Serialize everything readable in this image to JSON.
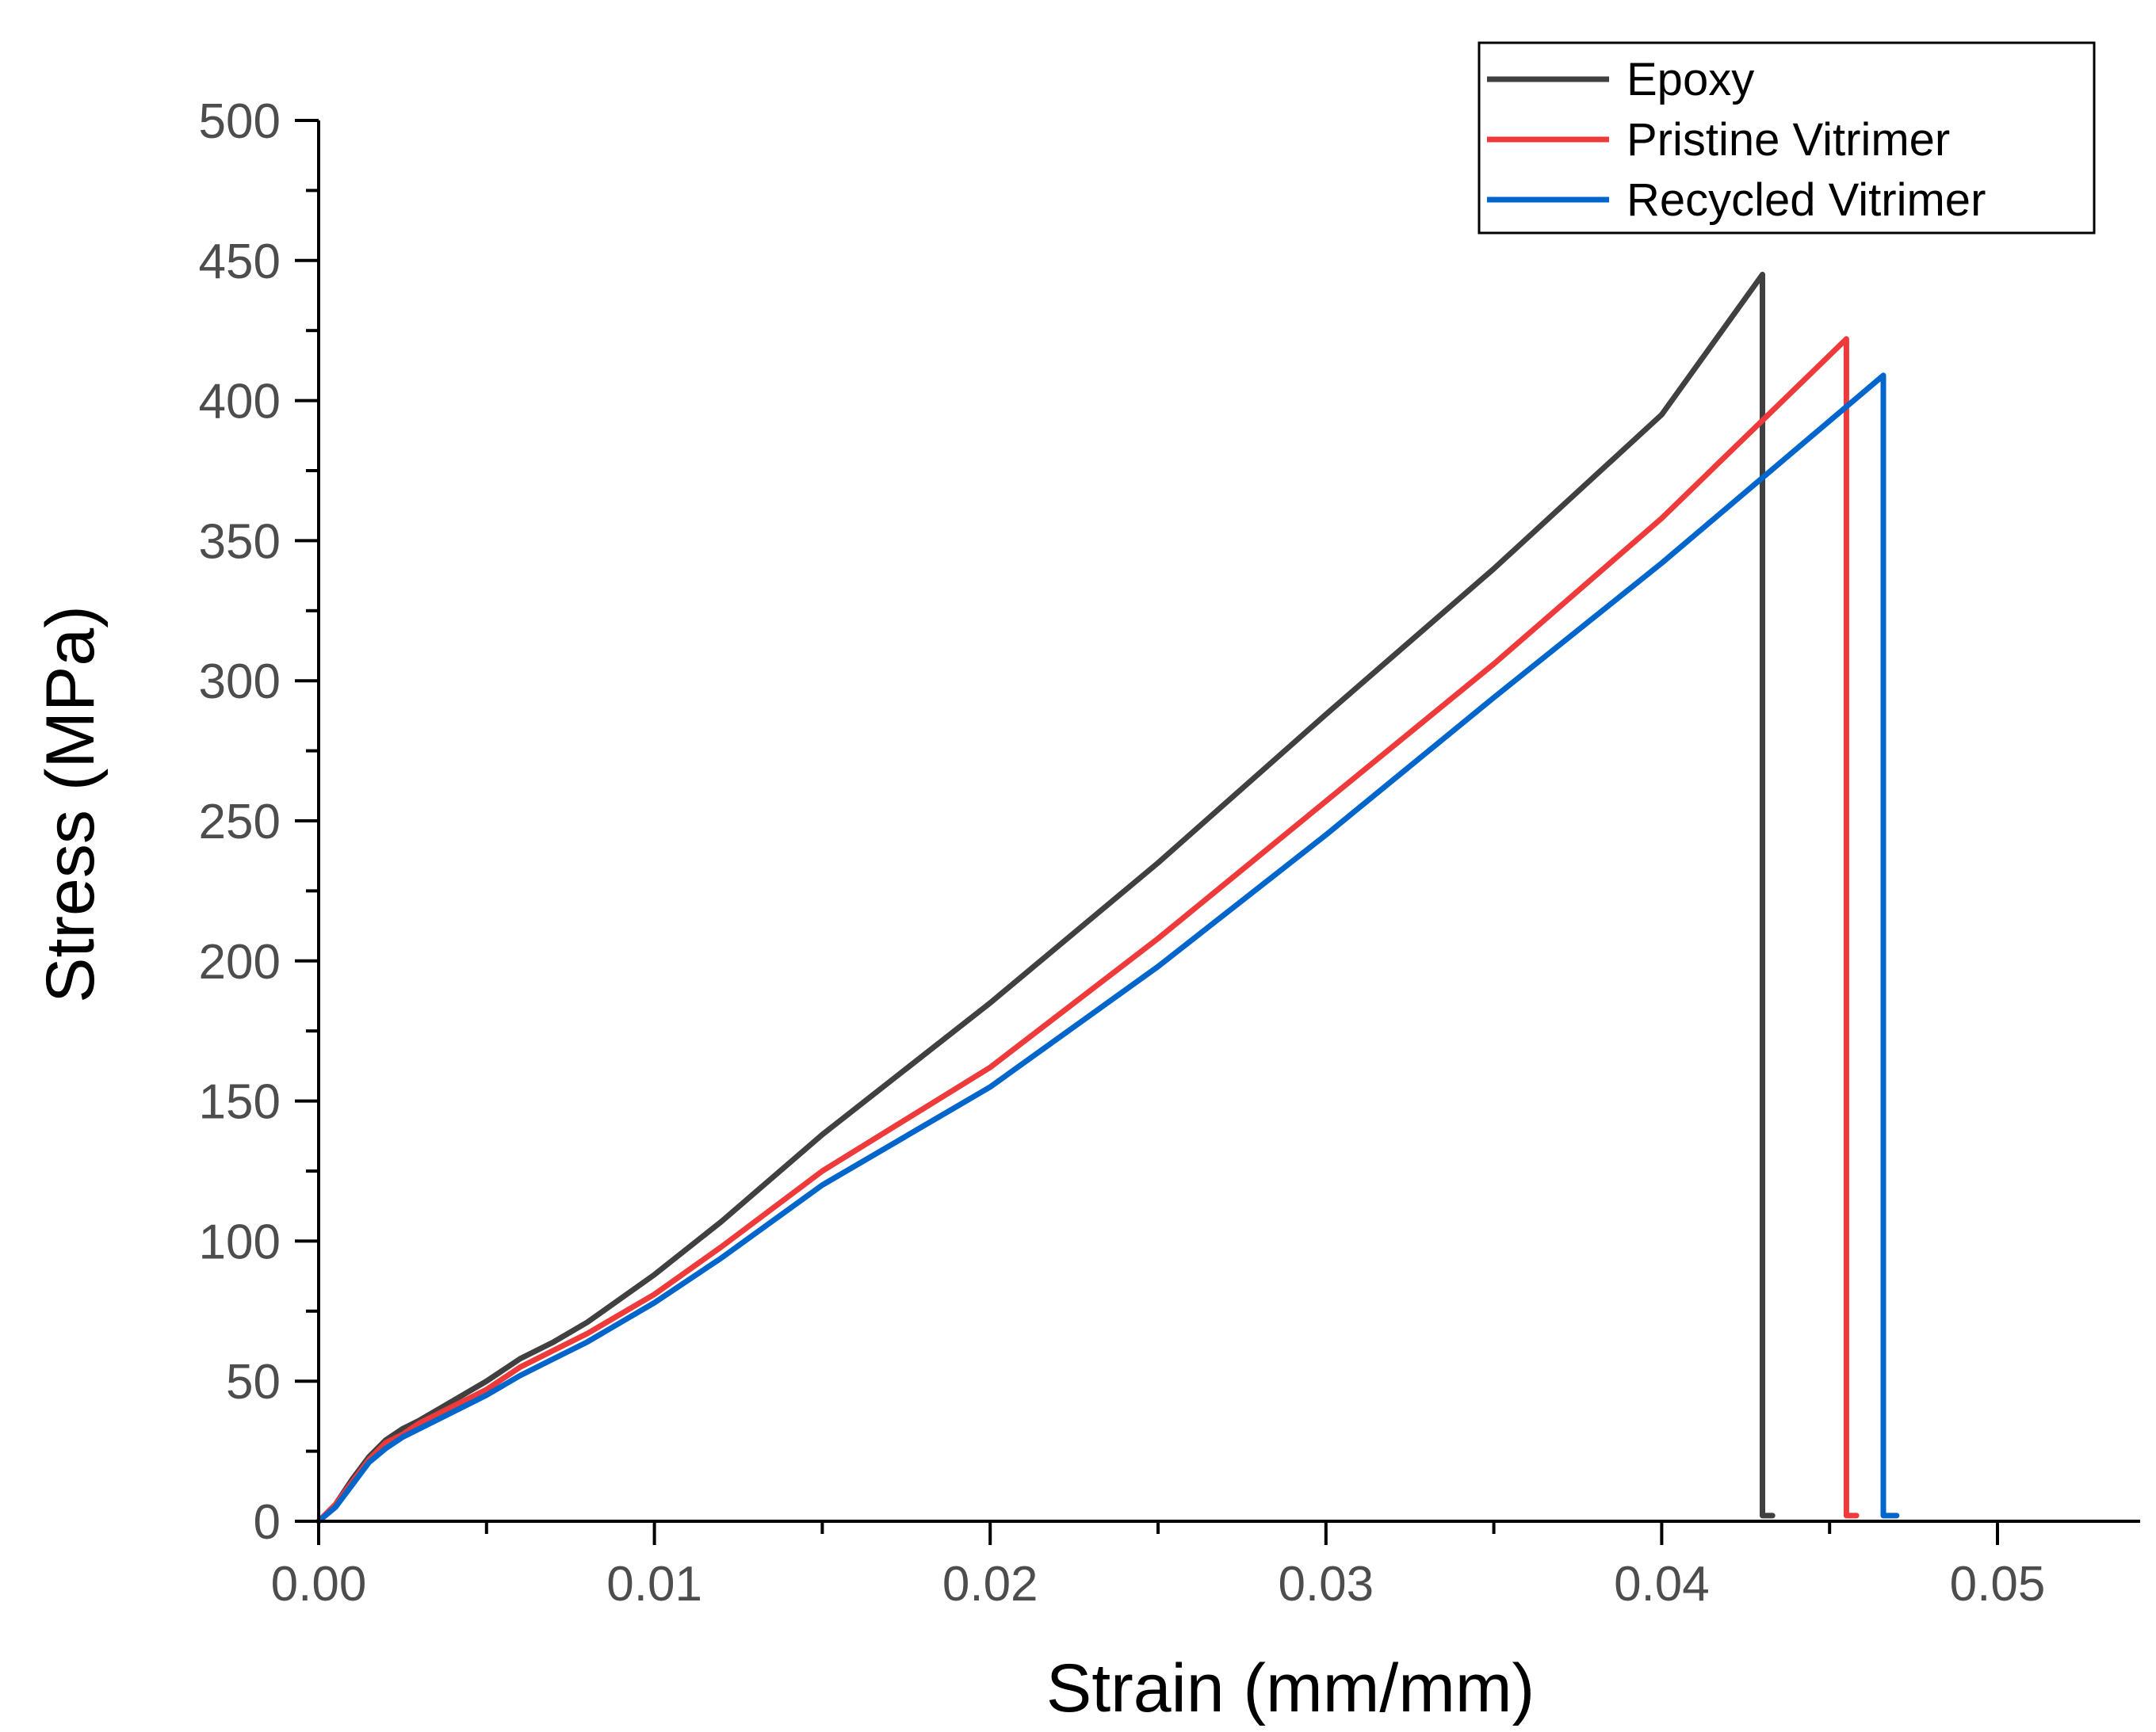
{
  "chart_data": {
    "type": "line",
    "title": "",
    "xlabel": "Strain (mm/mm)",
    "ylabel": "Stress (MPa)",
    "xlim": [
      0,
      0.0543
    ],
    "ylim": [
      0,
      500
    ],
    "x_ticks": [
      0.0,
      0.01,
      0.02,
      0.03,
      0.04,
      0.05
    ],
    "x_tick_labels": [
      "0.00",
      "0.01",
      "0.02",
      "0.03",
      "0.04",
      "0.05"
    ],
    "x_minor_step": 0.005,
    "y_ticks": [
      0,
      50,
      100,
      150,
      200,
      250,
      300,
      350,
      400,
      450,
      500
    ],
    "y_tick_labels": [
      "0",
      "50",
      "100",
      "150",
      "200",
      "250",
      "300",
      "350",
      "400",
      "450",
      "500"
    ],
    "y_minor_step": 25,
    "grid": false,
    "legend_position": "top-right",
    "series": [
      {
        "name": "Epoxy",
        "color": "#404040",
        "x": [
          0,
          0.0005,
          0.001,
          0.0015,
          0.002,
          0.0025,
          0.003,
          0.004,
          0.005,
          0.006,
          0.007,
          0.008,
          0.01,
          0.012,
          0.015,
          0.02,
          0.025,
          0.03,
          0.035,
          0.04,
          0.043,
          0.043,
          0.0433
        ],
        "y": [
          0,
          6,
          15,
          23,
          29,
          33,
          36,
          43,
          50,
          58,
          64,
          71,
          88,
          107,
          138,
          185,
          235,
          288,
          340,
          395,
          445,
          2,
          2
        ]
      },
      {
        "name": "Pristine Vitrimer",
        "color": "#ee3a3a",
        "x": [
          0,
          0.0005,
          0.001,
          0.0015,
          0.002,
          0.0025,
          0.003,
          0.004,
          0.005,
          0.006,
          0.007,
          0.008,
          0.01,
          0.012,
          0.015,
          0.02,
          0.025,
          0.03,
          0.035,
          0.04,
          0.0455,
          0.0455,
          0.0458
        ],
        "y": [
          0,
          6,
          14,
          22,
          28,
          31,
          35,
          41,
          47,
          55,
          61,
          67,
          81,
          98,
          125,
          162,
          208,
          257,
          306,
          358,
          422,
          2,
          2
        ]
      },
      {
        "name": "Recycled Vitrimer",
        "color": "#0066cc",
        "x": [
          0,
          0.0005,
          0.001,
          0.0015,
          0.002,
          0.0025,
          0.003,
          0.004,
          0.005,
          0.006,
          0.007,
          0.008,
          0.01,
          0.012,
          0.015,
          0.02,
          0.025,
          0.03,
          0.035,
          0.04,
          0.0466,
          0.0466,
          0.047
        ],
        "y": [
          0,
          5,
          13,
          21,
          26,
          30,
          33,
          39,
          45,
          52,
          58,
          64,
          78,
          94,
          120,
          155,
          198,
          245,
          294,
          342,
          409,
          2,
          2
        ]
      }
    ]
  }
}
